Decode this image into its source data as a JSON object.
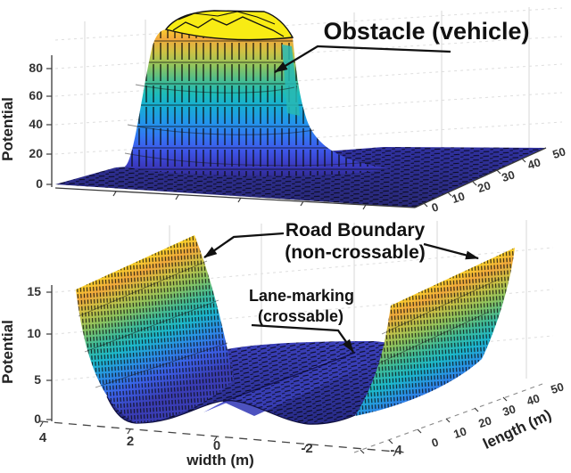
{
  "colors": {
    "background": "#ffffff",
    "colormap_name": "parula",
    "parula_low": "#2f2a90",
    "parula_mid": "#1dbcba",
    "parula_high": "#f9ee18",
    "orange_band": "#f2a93c",
    "floor_blue": "#2e2f9e",
    "annotation_ink": "#111111"
  },
  "chart_top": {
    "zlabel": "Potential",
    "zticks": [
      "0",
      "20",
      "40",
      "60",
      "80"
    ],
    "yticks": [
      "0",
      "10",
      "20",
      "30",
      "40",
      "50"
    ],
    "annotation": "Obstacle (vehicle)"
  },
  "chart_bottom": {
    "zlabel": "Potential",
    "xlabel": "width (m)",
    "ylabel": "length (m)",
    "zticks": [
      "0",
      "5",
      "10",
      "15"
    ],
    "xticks": [
      "4",
      "2",
      "0",
      "-2",
      "-4"
    ],
    "yticks": [
      "0",
      "10",
      "20",
      "30",
      "40",
      "50"
    ],
    "road_annotation_line1": "Road Boundary",
    "road_annotation_line2": "(non-crossable)",
    "lane_annotation_line1": "Lane-marking",
    "lane_annotation_line2": "(crossable)"
  },
  "chart_data": [
    {
      "type": "surface",
      "panel": "top",
      "title": "",
      "zlabel": "Potential",
      "z_ticks": [
        0,
        20,
        40,
        60,
        80
      ],
      "length_ticks": [
        0,
        10,
        20,
        30,
        40,
        50
      ],
      "z_range": [
        0,
        95
      ],
      "colormap": "parula",
      "annotations": [
        "Obstacle (vehicle)"
      ],
      "peak_potential": 95,
      "base_potential": 0,
      "surface_description": "Obstacle (vehicle) potential field: flat-topped plateau of height about 95 over the obstacle footprint near the center of the road area, steep bell-shaped sides dropping to a potential of about 0 over the rest of the surface"
    },
    {
      "type": "surface",
      "panel": "bottom",
      "title": "",
      "zlabel": "Potential",
      "xlabel": "width (m)",
      "ylabel": "length (m)",
      "z_ticks": [
        0,
        5,
        10,
        15
      ],
      "width_ticks": [
        4,
        2,
        0,
        -2,
        -4
      ],
      "length_ticks": [
        0,
        10,
        20,
        30,
        40,
        50
      ],
      "z_range": [
        0,
        15
      ],
      "width_range": [
        4,
        -4
      ],
      "length_range": [
        0,
        50
      ],
      "colormap": "parula",
      "annotations": [
        "Road Boundary (non-crossable)",
        "Lane-marking (crossable)"
      ],
      "cross_section_width_profile": {
        "width": [
          4,
          3.5,
          3,
          2.5,
          2,
          1,
          0,
          -1,
          -2,
          -2.5,
          -3,
          -3.5,
          -4
        ],
        "potential": [
          15,
          9,
          4,
          1,
          0,
          0.6,
          2,
          0.6,
          0,
          1,
          4,
          9,
          15
        ]
      },
      "surface_description": "Road potential uniform along length: non-crossable road boundaries at width +/-4 m rising above 15, a small crossable lane-marking ridge of about 2 at width 0, and zero potential at the lane centers near width +/-2 m"
    }
  ]
}
